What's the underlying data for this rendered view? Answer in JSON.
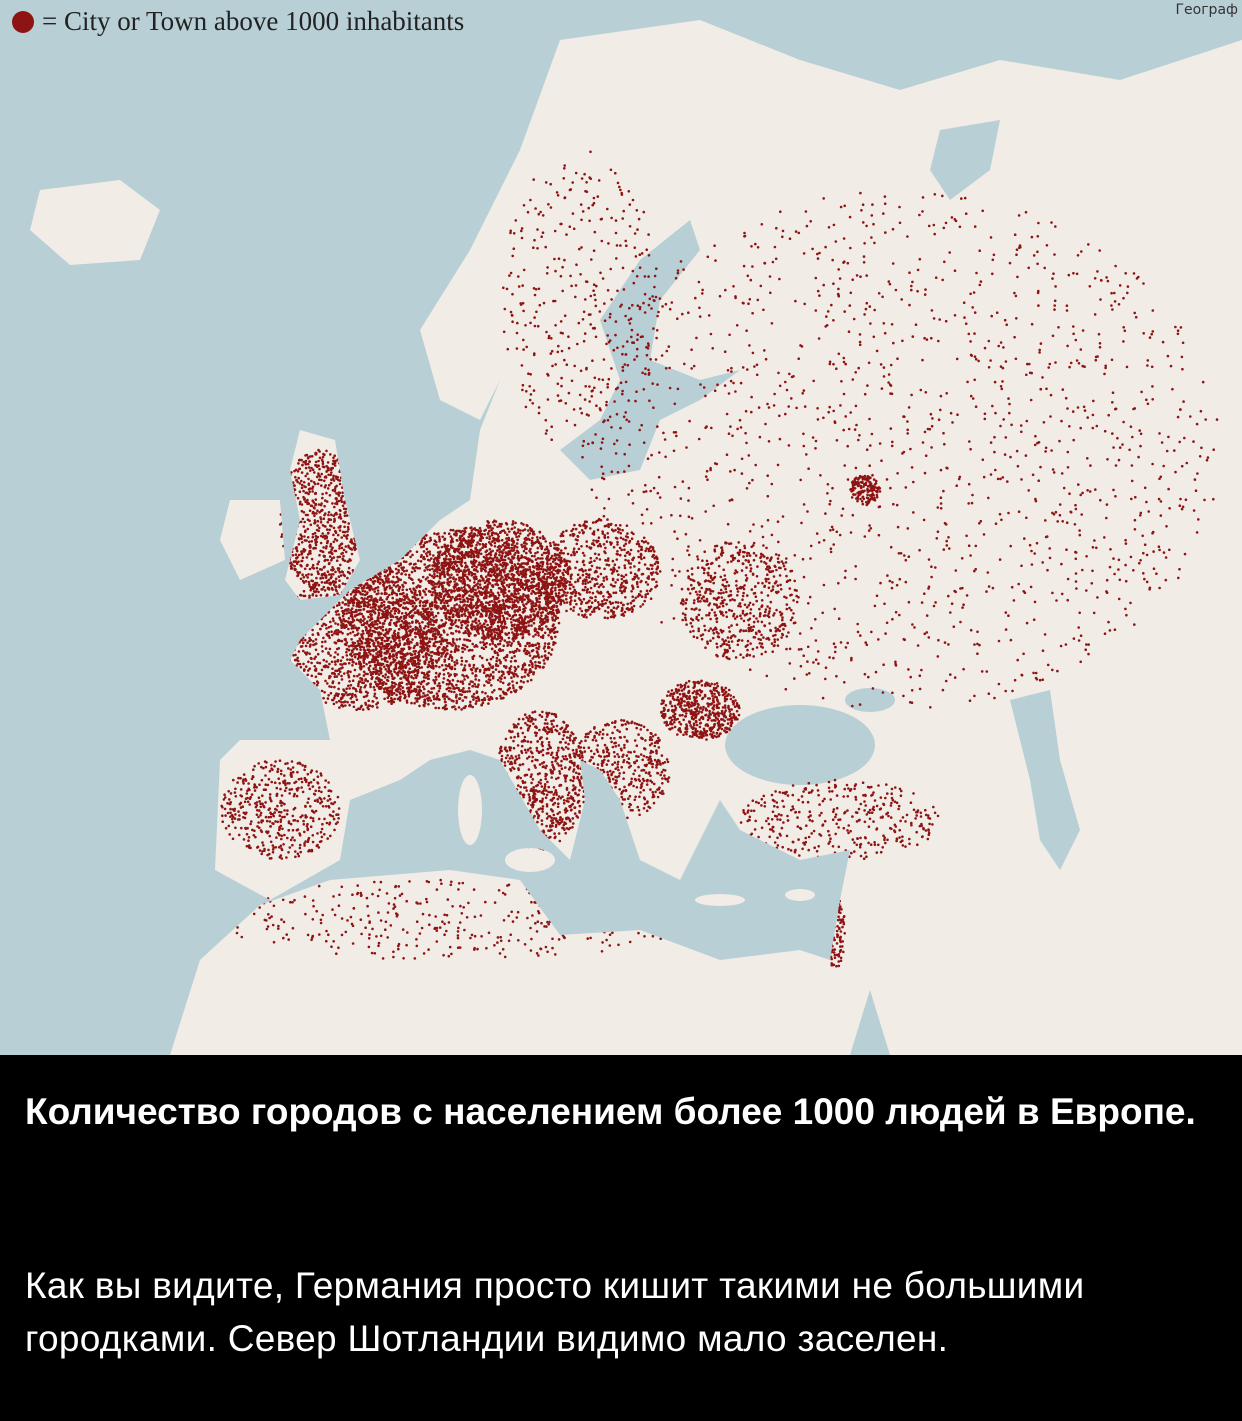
{
  "map": {
    "legend": {
      "symbol": "red-dot",
      "label": "= City or Town above 1000 inhabitants"
    },
    "watermark": "Географ",
    "colors": {
      "sea": "#b8cfd6",
      "land": "#f1ece6",
      "dots": "#8e1414"
    }
  },
  "caption": {
    "title": "Количество городов с населением более 1000 людей в Европе.",
    "body": "Как вы видите, Германия просто кишит такими не большими городками. Север Шотландии видимо мало заселен."
  }
}
